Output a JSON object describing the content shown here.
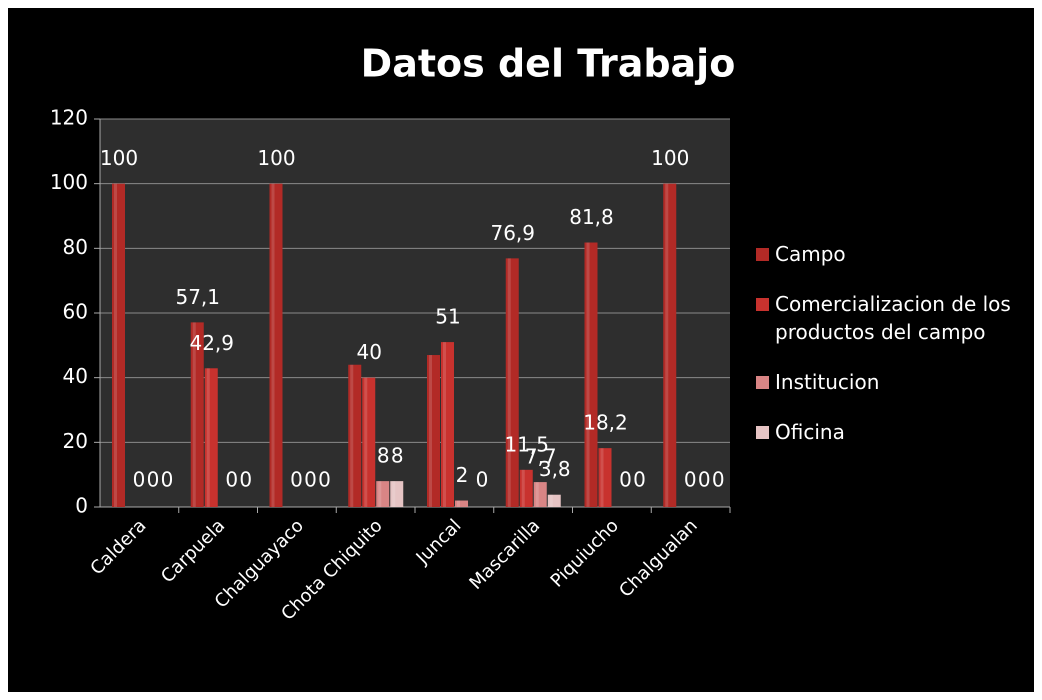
{
  "chart_data": {
    "type": "bar",
    "title": "Datos del Trabajo",
    "categories": [
      "Caldera",
      "Carpuela",
      "Chalguayaco",
      "Chota Chiquito",
      "Juncal",
      "Mascarilla",
      "Piquiucho",
      "Chalgualan"
    ],
    "series": [
      {
        "name": "Campo",
        "color": "#b22a26",
        "values": [
          100,
          57.1,
          100,
          44,
          47,
          76.9,
          81.8,
          100
        ],
        "value_labels": [
          "100",
          "57,1",
          "100",
          null,
          null,
          "76,9",
          "81,8",
          "100"
        ]
      },
      {
        "name": "Comercializacion de los productos del campo",
        "color": "#c8322e",
        "values": [
          0,
          42.9,
          0,
          40,
          51,
          11.5,
          18.2,
          0
        ],
        "value_labels": [
          "0",
          "42,9",
          "0",
          "40",
          "51",
          "11,5",
          "18,2",
          "0"
        ]
      },
      {
        "name": "Institucion",
        "color": "#d98585",
        "values": [
          0,
          0,
          0,
          8,
          2,
          7.7,
          0,
          0
        ],
        "value_labels": [
          "0",
          "0",
          "0",
          "8",
          "2",
          "7,7",
          "0",
          "0"
        ]
      },
      {
        "name": "Oficina",
        "color": "#e6c4c4",
        "values": [
          0,
          0,
          0,
          8,
          0,
          3.8,
          0,
          0
        ],
        "value_labels": [
          "0",
          "0",
          "0",
          "8",
          "0",
          "3,8",
          "0",
          "0"
        ]
      }
    ],
    "ylim": [
      0,
      120
    ],
    "yticks": [
      0,
      20,
      40,
      60,
      80,
      100,
      120
    ],
    "grid": true,
    "legend": "right"
  }
}
